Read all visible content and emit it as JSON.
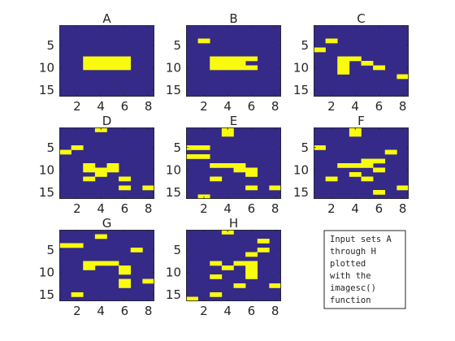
{
  "chart_data": {
    "type": "heatmap",
    "description_function": "imagesc",
    "colors": {
      "low": "#352a87",
      "high": "#f9fb0e",
      "axis": "#262626",
      "background": "#ffffff"
    },
    "xlim": [
      0.5,
      8.5
    ],
    "ylim": [
      0.5,
      16.5
    ],
    "y_reversed": true,
    "xticks": [
      2,
      4,
      6,
      8
    ],
    "yticks": [
      5,
      10,
      15
    ],
    "panels": [
      {
        "title": "A",
        "cells": [
          [
            3,
            8
          ],
          [
            4,
            8
          ],
          [
            5,
            8
          ],
          [
            6,
            8
          ],
          [
            3,
            9
          ],
          [
            4,
            9
          ],
          [
            5,
            9
          ],
          [
            6,
            9
          ],
          [
            3,
            10
          ],
          [
            4,
            10
          ],
          [
            5,
            10
          ],
          [
            6,
            10
          ]
        ]
      },
      {
        "title": "B",
        "cells": [
          [
            2,
            4
          ],
          [
            3,
            8
          ],
          [
            4,
            8
          ],
          [
            5,
            8
          ],
          [
            3,
            9
          ],
          [
            4,
            9
          ],
          [
            6,
            8
          ],
          [
            5,
            9
          ],
          [
            3,
            10
          ],
          [
            4,
            10
          ],
          [
            5,
            10
          ],
          [
            6,
            10
          ]
        ]
      },
      {
        "title": "C",
        "cells": [
          [
            2,
            4
          ],
          [
            1,
            6
          ],
          [
            3,
            8
          ],
          [
            4,
            8
          ],
          [
            3,
            9
          ],
          [
            5,
            9
          ],
          [
            6,
            10
          ],
          [
            3,
            10
          ],
          [
            3,
            11
          ],
          [
            8,
            12
          ]
        ]
      },
      {
        "title": "D",
        "cells": [
          [
            4,
            1
          ],
          [
            2,
            5
          ],
          [
            1,
            6
          ],
          [
            3,
            9
          ],
          [
            5,
            9
          ],
          [
            3,
            10
          ],
          [
            4,
            10
          ],
          [
            5,
            10
          ],
          [
            4,
            11
          ],
          [
            6,
            12
          ],
          [
            3,
            12
          ],
          [
            6,
            14
          ],
          [
            8,
            14
          ]
        ]
      },
      {
        "title": "E",
        "cells": [
          [
            4,
            1
          ],
          [
            4,
            2
          ],
          [
            1,
            5
          ],
          [
            2,
            5
          ],
          [
            1,
            7
          ],
          [
            2,
            7
          ],
          [
            3,
            9
          ],
          [
            4,
            9
          ],
          [
            5,
            9
          ],
          [
            5,
            10
          ],
          [
            6,
            10
          ],
          [
            6,
            11
          ],
          [
            3,
            12
          ],
          [
            6,
            14
          ],
          [
            8,
            14
          ],
          [
            2,
            16
          ]
        ]
      },
      {
        "title": "F",
        "cells": [
          [
            4,
            1
          ],
          [
            4,
            2
          ],
          [
            1,
            5
          ],
          [
            7,
            6
          ],
          [
            5,
            8
          ],
          [
            6,
            8
          ],
          [
            3,
            9
          ],
          [
            4,
            9
          ],
          [
            5,
            9
          ],
          [
            6,
            10
          ],
          [
            4,
            11
          ],
          [
            2,
            12
          ],
          [
            5,
            12
          ],
          [
            8,
            14
          ],
          [
            6,
            15
          ]
        ]
      },
      {
        "title": "G",
        "cells": [
          [
            4,
            2
          ],
          [
            1,
            4
          ],
          [
            2,
            4
          ],
          [
            7,
            5
          ],
          [
            3,
            8
          ],
          [
            4,
            8
          ],
          [
            5,
            8
          ],
          [
            3,
            9
          ],
          [
            6,
            9
          ],
          [
            6,
            10
          ],
          [
            6,
            12
          ],
          [
            8,
            12
          ],
          [
            6,
            13
          ],
          [
            2,
            15
          ]
        ]
      },
      {
        "title": "H",
        "cells": [
          [
            4,
            1
          ],
          [
            7,
            3
          ],
          [
            7,
            5
          ],
          [
            6,
            6
          ],
          [
            3,
            8
          ],
          [
            5,
            8
          ],
          [
            6,
            8
          ],
          [
            4,
            9
          ],
          [
            6,
            9
          ],
          [
            6,
            10
          ],
          [
            3,
            11
          ],
          [
            6,
            11
          ],
          [
            5,
            13
          ],
          [
            8,
            13
          ],
          [
            3,
            15
          ],
          [
            1,
            16
          ]
        ]
      }
    ]
  },
  "annotation": {
    "lines": [
      "Input sets A",
      "through H",
      "plotted",
      "with the",
      "imagesc()",
      "function"
    ]
  }
}
